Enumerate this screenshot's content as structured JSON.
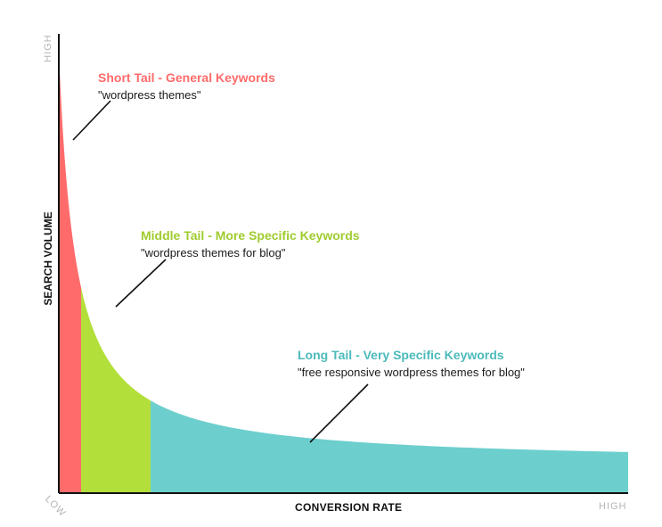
{
  "axes": {
    "x_label": "CONVERSION RATE",
    "y_label": "SEARCH VOLUME",
    "x_high": "HIGH",
    "y_high": "HIGH",
    "origin_low": "LOW"
  },
  "segments": [
    {
      "id": "short-tail",
      "title": "Short Tail - General Keywords",
      "example": "\"wordpress themes\"",
      "color": "#ff6b6b"
    },
    {
      "id": "middle-tail",
      "title": "Middle Tail - More Specific Keywords",
      "example": "\"wordpress themes for blog\"",
      "color": "#9fcc2e"
    },
    {
      "id": "long-tail",
      "title": "Long Tail - Very Specific Keywords",
      "example": "\"free responsive wordpress themes for blog\"",
      "color": "#4cbaba"
    }
  ],
  "colors": {
    "short_tail_fill": "#ff6b6b",
    "middle_tail_fill": "#b3df3b",
    "long_tail_fill": "#6ccfce",
    "axis": "#111111",
    "axis_end_text": "#b5b5b5"
  }
}
